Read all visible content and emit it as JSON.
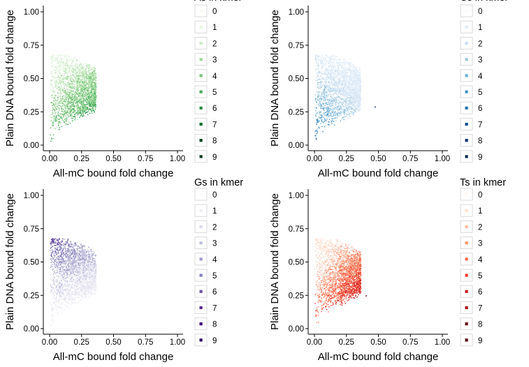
{
  "chart_data": [
    {
      "type": "scatter",
      "xlabel": "All-mC bound fold change",
      "ylabel": "Plain DNA bound fold change",
      "xlim": [
        0,
        1
      ],
      "ylim": [
        0,
        1
      ],
      "x_ticks": [
        "0.00",
        "0.25",
        "0.50",
        "0.75",
        "1.00"
      ],
      "y_ticks": [
        "0.00",
        "0.25",
        "0.50",
        "0.75",
        "1.00"
      ],
      "legend": {
        "title": "As in kmer",
        "placement": "right",
        "levels": [
          "0",
          "1",
          "2",
          "3",
          "4",
          "5",
          "6",
          "7",
          "8",
          "9"
        ],
        "colors": [
          "#f7fcf5",
          "#e5f5e0",
          "#c7e9c0",
          "#a1d99b",
          "#74c476",
          "#41ab5d",
          "#238b45",
          "#006d2c",
          "#00441b",
          "#00391a"
        ]
      },
      "cloud": {
        "center_x": 0.13,
        "center_y": 0.4,
        "trend": "higher counts lie lower (down-right)"
      }
    },
    {
      "type": "scatter",
      "xlabel": "All-mC bound fold change",
      "ylabel": "Plain DNA bound fold change",
      "xlim": [
        0,
        1
      ],
      "ylim": [
        0,
        1
      ],
      "x_ticks": [
        "0.00",
        "0.25",
        "0.50",
        "0.75",
        "1.00"
      ],
      "y_ticks": [
        "0.00",
        "0.25",
        "0.50",
        "0.75",
        "1.00"
      ],
      "legend": {
        "title": "Cs in kmer",
        "placement": "right",
        "levels": [
          "0",
          "1",
          "2",
          "3",
          "4",
          "5",
          "6",
          "7",
          "8",
          "9"
        ],
        "colors": [
          "#f7fbff",
          "#deebf7",
          "#c6dbef",
          "#9ecae1",
          "#6baed6",
          "#4292c6",
          "#2171b5",
          "#08519c",
          "#08306b",
          "#062a57"
        ]
      },
      "cloud": {
        "center_x": 0.1,
        "center_y": 0.4,
        "trend": "higher counts lie left and low"
      },
      "outliers": [
        {
          "x": 0.47,
          "y": 0.29
        }
      ]
    },
    {
      "type": "scatter",
      "xlabel": "All-mC bound fold change",
      "ylabel": "Plain DNA bound fold change",
      "xlim": [
        0,
        1
      ],
      "ylim": [
        0,
        1
      ],
      "x_ticks": [
        "0.00",
        "0.25",
        "0.50",
        "0.75",
        "1.00"
      ],
      "y_ticks": [
        "0.00",
        "0.25",
        "0.50",
        "0.75",
        "1.00"
      ],
      "legend": {
        "title": "Gs in kmer",
        "placement": "right",
        "levels": [
          "0",
          "1",
          "2",
          "3",
          "4",
          "5",
          "6",
          "7",
          "8",
          "9"
        ],
        "colors": [
          "#fcfbfd",
          "#efedf5",
          "#dadaeb",
          "#bcbddc",
          "#9e9ac8",
          "#807dba",
          "#6a51a3",
          "#54278f",
          "#3f007d",
          "#2a0069"
        ]
      },
      "cloud": {
        "center_x": 0.12,
        "center_y": 0.38,
        "trend": "higher counts lie higher (up-left)"
      }
    },
    {
      "type": "scatter",
      "xlabel": "All-mC bound fold change",
      "ylabel": "Plain DNA bound fold change",
      "xlim": [
        0,
        1
      ],
      "ylim": [
        0,
        1
      ],
      "x_ticks": [
        "0.00",
        "0.25",
        "0.50",
        "0.75",
        "1.00"
      ],
      "y_ticks": [
        "0.00",
        "0.25",
        "0.50",
        "0.75",
        "1.00"
      ],
      "legend": {
        "title": "Ts in kmer",
        "placement": "right",
        "levels": [
          "0",
          "1",
          "2",
          "3",
          "4",
          "5",
          "6",
          "7",
          "8",
          "9"
        ],
        "colors": [
          "#fff5f0",
          "#fee0d2",
          "#fcbba1",
          "#fc9272",
          "#fb6a4a",
          "#ef3b2c",
          "#cb181d",
          "#a50f15",
          "#67000d",
          "#4f000a"
        ]
      },
      "cloud": {
        "center_x": 0.15,
        "center_y": 0.4,
        "trend": "higher counts lie right and low"
      },
      "outliers": [
        {
          "x": 0.4,
          "y": 0.25
        }
      ]
    }
  ]
}
